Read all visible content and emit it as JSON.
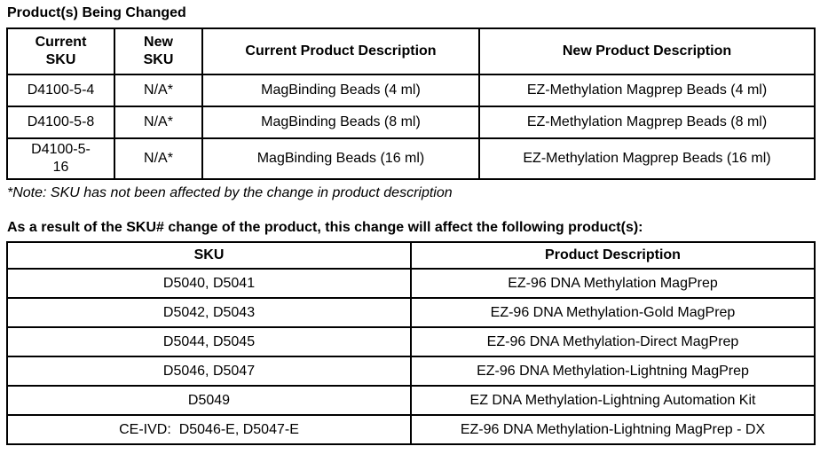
{
  "page": {
    "title": "Product(s) Being Changed",
    "note": "*Note: SKU has not been affected by the change in product description",
    "section2_heading": "As a result of the SKU# change of the product, this change will affect the following product(s):"
  },
  "products_table": {
    "headers": [
      "Current\nSKU",
      "New\nSKU",
      "Current Product Description",
      "New Product Description"
    ],
    "rows": [
      {
        "current_sku": "D4100-5-4",
        "new_sku": "N/A*",
        "current_desc": "MagBinding Beads (4 ml)",
        "new_desc": "EZ-Methylation Magprep Beads (4 ml)"
      },
      {
        "current_sku": "D4100-5-8",
        "new_sku": "N/A*",
        "current_desc": "MagBinding Beads (8 ml)",
        "new_desc": "EZ-Methylation Magprep Beads (8 ml)"
      },
      {
        "current_sku": "D4100-5-\n16",
        "new_sku": "N/A*",
        "current_desc": "MagBinding Beads (16 ml)",
        "new_desc": "EZ-Methylation Magprep Beads (16 ml)"
      }
    ]
  },
  "affected_table": {
    "headers": [
      "SKU",
      "Product Description"
    ],
    "rows": [
      {
        "sku": "D5040, D5041",
        "description": "EZ-96 DNA Methylation MagPrep"
      },
      {
        "sku": "D5042, D5043",
        "description": "EZ-96 DNA Methylation-Gold MagPrep"
      },
      {
        "sku": "D5044, D5045",
        "description": "EZ-96 DNA Methylation-Direct MagPrep"
      },
      {
        "sku": "D5046, D5047",
        "description": "EZ-96 DNA Methylation-Lightning MagPrep"
      },
      {
        "sku": "D5049",
        "description": "EZ DNA Methylation-Lightning Automation Kit"
      },
      {
        "sku": "CE-IVD:  D5046-E, D5047-E",
        "description": "EZ-96 DNA Methylation-Lightning MagPrep - DX"
      }
    ]
  }
}
